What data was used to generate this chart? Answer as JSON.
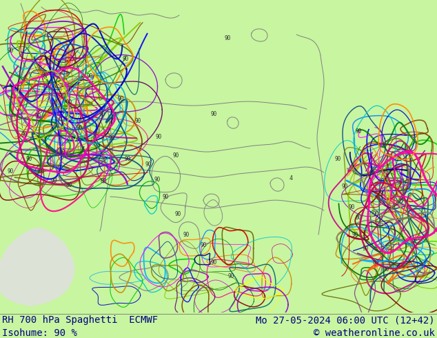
{
  "title_left": "RH 700 hPa Spaghetti  ECMWF",
  "title_right": "Mo 27-05-2024 06:00 UTC (12+42)",
  "subtitle_left": "Isohume: 90 %",
  "subtitle_right": "© weatheronline.co.uk",
  "background_color": "#c8f5a0",
  "mountain_color": "#e8e8e8",
  "text_color": "#000080",
  "font_size_title": 10,
  "font_size_subtitle": 10,
  "fig_width": 6.34,
  "fig_height": 4.9,
  "dpi": 100,
  "contour_colors": [
    "#808080",
    "#0000cc",
    "#cc0000",
    "#ff00ff",
    "#cc00cc",
    "#00aaff",
    "#ff8800",
    "#ffff00",
    "#00cc00",
    "#888800",
    "#00cccc",
    "#8800cc",
    "#cc8800",
    "#0088ff",
    "#ff0088",
    "#88cc00",
    "#cc0088",
    "#0000ff",
    "#ff6600",
    "#006600",
    "#660066",
    "#006666",
    "#666600",
    "#880000",
    "#008800",
    "#000088",
    "#884400",
    "#004488",
    "#448800",
    "#804080"
  ],
  "border_color": "#808080",
  "label_color": "#404040",
  "bottom_bg": "#c8f5a0"
}
